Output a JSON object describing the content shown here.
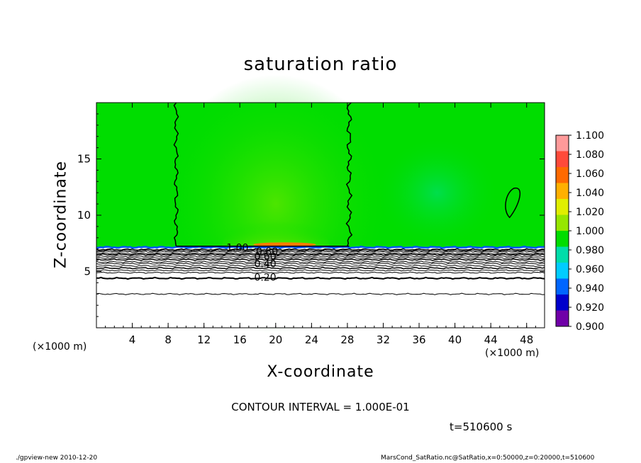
{
  "chart_data": {
    "type": "heatmap",
    "title": "saturation ratio",
    "xlabel": "X-coordinate",
    "ylabel": "Z-coordinate",
    "x_unit": "(×1000 m)",
    "xlim": [
      0,
      50
    ],
    "ylim": [
      0,
      20
    ],
    "x_ticks": [
      4,
      8,
      12,
      16,
      20,
      24,
      28,
      32,
      36,
      40,
      44,
      48
    ],
    "y_ticks": [
      5,
      10,
      15
    ],
    "contour_levels": [
      0.2,
      0.4,
      0.6,
      0.8,
      1.0
    ],
    "contour_labels": [
      "0.20",
      "0.40",
      "0.60",
      "0.80",
      "1.00"
    ],
    "colorbar": {
      "levels": [
        "1.100",
        "1.080",
        "1.060",
        "1.040",
        "1.020",
        "1.000",
        "0.980",
        "0.960",
        "0.940",
        "0.920",
        "0.900"
      ],
      "colors": [
        "#ff9a9a",
        "#ff4a3a",
        "#ff6a00",
        "#ffb000",
        "#e0ee00",
        "#96e600",
        "#00dd00",
        "#00ddaa",
        "#00ccff",
        "#0066ff",
        "#0000cc",
        "#7000a8"
      ]
    },
    "annotations": {
      "contour_interval": "CONTOUR INTERVAL = 1.000E-01",
      "time": "t=510600 s"
    }
  },
  "footer": {
    "left": "./gpview-new   2010-12-20",
    "right": "MarsCond_SatRatio.nc@SatRatio,x=0:50000,z=0:20000,t=510600"
  }
}
